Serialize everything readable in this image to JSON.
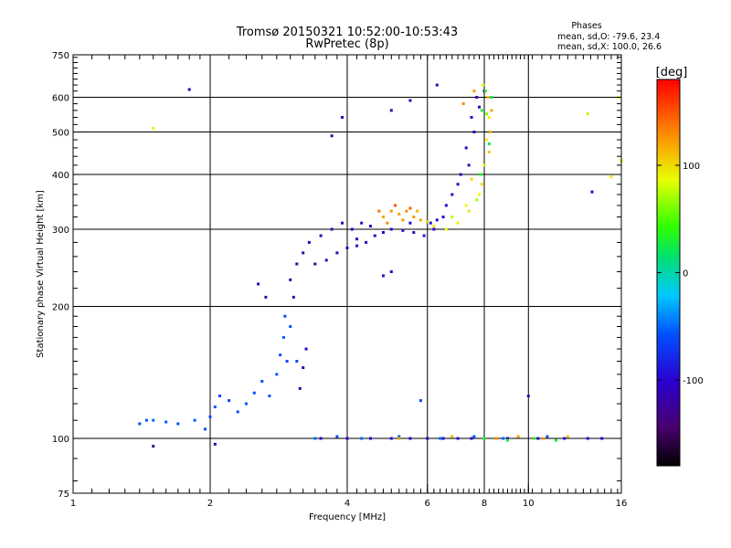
{
  "chart_data": {
    "type": "scatter",
    "title": "Tromsø 20150321 10:52:00-10:53:43",
    "subtitle": "RwPretec (8p)",
    "stats": {
      "heading": "Phases",
      "line1": "mean, sd,O: -79.6, 23.4",
      "line2": "mean, sd,X: 100.0, 26.6"
    },
    "xlabel": "Frequency [MHz]",
    "ylabel": "Stationary phase Virtual Height [km]",
    "x_scale": "log",
    "y_scale": "log",
    "xlim": [
      1,
      16
    ],
    "ylim": [
      75,
      750
    ],
    "x_ticks": [
      1,
      2,
      4,
      6,
      8,
      10,
      16
    ],
    "x_tick_labels": [
      "1",
      "2",
      "4",
      "6",
      "8",
      "10",
      "16"
    ],
    "y_ticks": [
      75,
      100,
      200,
      300,
      400,
      500,
      600,
      750
    ],
    "y_tick_labels": [
      "75",
      "100",
      "200",
      "300",
      "400",
      "500",
      "600",
      "750"
    ],
    "grid": true,
    "colorbar": {
      "label": "[deg]",
      "range": [
        -180,
        180
      ],
      "ticks": [
        100,
        0,
        -100
      ],
      "tick_labels": [
        "100",
        "0",
        "-100"
      ]
    },
    "series": [
      {
        "points": [
          [
            1.4,
            108,
            -60
          ],
          [
            1.45,
            110,
            -55
          ],
          [
            1.5,
            110,
            -50
          ],
          [
            1.6,
            109,
            -55
          ],
          [
            1.7,
            108,
            -60
          ],
          [
            1.85,
            110,
            -55
          ],
          [
            1.95,
            105,
            -60
          ],
          [
            2.0,
            112,
            -60
          ],
          [
            2.05,
            118,
            -55
          ],
          [
            2.1,
            125,
            -60
          ],
          [
            2.2,
            122,
            -65
          ],
          [
            2.3,
            115,
            -60
          ],
          [
            2.4,
            120,
            -55
          ],
          [
            2.5,
            127,
            -60
          ],
          [
            2.6,
            135,
            -60
          ],
          [
            2.7,
            125,
            -55
          ],
          [
            2.8,
            140,
            -55
          ],
          [
            2.85,
            155,
            -60
          ],
          [
            2.9,
            170,
            -55
          ],
          [
            2.92,
            190,
            -60
          ],
          [
            2.95,
            150,
            -60
          ],
          [
            3.0,
            180,
            -60
          ],
          [
            3.05,
            210,
            -110
          ],
          [
            3.1,
            150,
            -60
          ],
          [
            3.15,
            130,
            -110
          ],
          [
            3.2,
            145,
            -115
          ],
          [
            3.0,
            230,
            -120
          ],
          [
            3.1,
            250,
            -115
          ],
          [
            3.2,
            265,
            -120
          ],
          [
            3.4,
            250,
            -115
          ],
          [
            3.6,
            255,
            -110
          ],
          [
            3.8,
            265,
            -110
          ],
          [
            4.0,
            272,
            -105
          ],
          [
            4.2,
            275,
            -110
          ],
          [
            4.4,
            280,
            -105
          ],
          [
            4.6,
            290,
            -110
          ],
          [
            4.8,
            295,
            -105
          ],
          [
            5.0,
            300,
            -100
          ],
          [
            5.3,
            298,
            -95
          ],
          [
            5.6,
            295,
            -95
          ],
          [
            5.9,
            290,
            -90
          ],
          [
            6.2,
            300,
            -100
          ],
          [
            6.5,
            320,
            -105
          ],
          [
            6.8,
            360,
            -100
          ],
          [
            7.1,
            400,
            -105
          ],
          [
            7.3,
            460,
            -110
          ],
          [
            7.5,
            540,
            -105
          ],
          [
            7.7,
            600,
            -110
          ],
          [
            3.3,
            280,
            -115
          ],
          [
            3.5,
            290,
            -120
          ],
          [
            3.7,
            300,
            -115
          ],
          [
            3.9,
            310,
            -110
          ],
          [
            4.1,
            300,
            -110
          ],
          [
            4.3,
            310,
            -105
          ],
          [
            4.5,
            305,
            -100
          ],
          [
            4.2,
            285,
            -115
          ],
          [
            5.5,
            310,
            -95
          ],
          [
            6.1,
            310,
            -90
          ],
          [
            6.3,
            315,
            -95
          ],
          [
            6.6,
            340,
            -100
          ],
          [
            7.0,
            380,
            -105
          ],
          [
            7.4,
            420,
            -110
          ],
          [
            7.6,
            500,
            -110
          ],
          [
            7.8,
            570,
            -105
          ],
          [
            8.0,
            620,
            -110
          ],
          [
            3.5,
            100,
            -100
          ],
          [
            4.0,
            100,
            -105
          ],
          [
            4.5,
            100,
            -100
          ],
          [
            5.0,
            100,
            -95
          ],
          [
            5.5,
            100,
            -100
          ],
          [
            6.0,
            100,
            -105
          ],
          [
            6.5,
            100,
            -100
          ],
          [
            7.0,
            100,
            -95
          ],
          [
            7.5,
            100,
            -100
          ],
          [
            8.0,
            100,
            -105
          ],
          [
            9.0,
            100,
            -100
          ],
          [
            10.5,
            100,
            -105
          ],
          [
            12.0,
            100,
            -100
          ],
          [
            13.5,
            100,
            -95
          ],
          [
            14.5,
            100,
            -100
          ],
          [
            3.4,
            100,
            -50
          ],
          [
            3.8,
            101,
            -55
          ],
          [
            4.3,
            100,
            -50
          ],
          [
            5.2,
            101,
            -55
          ],
          [
            6.4,
            100,
            -50
          ],
          [
            7.6,
            101,
            -55
          ],
          [
            8.8,
            100,
            -50
          ],
          [
            11.0,
            101,
            -55
          ],
          [
            1.8,
            625,
            -110
          ],
          [
            3.7,
            490,
            -110
          ],
          [
            3.9,
            540,
            -105
          ],
          [
            5.0,
            560,
            -110
          ],
          [
            5.5,
            590,
            -105
          ],
          [
            6.3,
            640,
            -115
          ],
          [
            13.8,
            365,
            -110
          ],
          [
            1.5,
            96,
            -130
          ],
          [
            2.05,
            97,
            -120
          ],
          [
            2.55,
            225,
            -115
          ],
          [
            2.65,
            210,
            -120
          ],
          [
            10.0,
            125,
            -115
          ],
          [
            5.8,
            122,
            -60
          ],
          [
            5.0,
            240,
            -100
          ],
          [
            4.8,
            235,
            -110
          ],
          [
            3.25,
            160,
            -105
          ]
        ]
      },
      {
        "points": [
          [
            4.8,
            320,
            120
          ],
          [
            5.0,
            330,
            125
          ],
          [
            5.2,
            325,
            120
          ],
          [
            5.4,
            330,
            130
          ],
          [
            5.6,
            320,
            125
          ],
          [
            5.8,
            315,
            120
          ],
          [
            6.0,
            312,
            100
          ],
          [
            4.9,
            310,
            130
          ],
          [
            5.3,
            315,
            125
          ],
          [
            5.7,
            330,
            115
          ],
          [
            6.2,
            305,
            95
          ],
          [
            6.6,
            300,
            85
          ],
          [
            7.0,
            310,
            90
          ],
          [
            7.4,
            330,
            95
          ],
          [
            7.8,
            360,
            85
          ],
          [
            8.0,
            420,
            80
          ],
          [
            8.1,
            480,
            85
          ],
          [
            8.2,
            540,
            90
          ],
          [
            8.15,
            600,
            110
          ],
          [
            7.9,
            380,
            100
          ],
          [
            8.3,
            560,
            120
          ],
          [
            8.25,
            500,
            115
          ],
          [
            7.2,
            580,
            130
          ],
          [
            7.6,
            620,
            125
          ],
          [
            7.95,
            640,
            90
          ],
          [
            8.1,
            550,
            60
          ],
          [
            7.7,
            350,
            70
          ],
          [
            7.3,
            340,
            85
          ],
          [
            6.8,
            320,
            75
          ],
          [
            7.5,
            390,
            100
          ],
          [
            8.2,
            450,
            105
          ],
          [
            5.2,
            100,
            120
          ],
          [
            6.8,
            101,
            115
          ],
          [
            8.5,
            100,
            130
          ],
          [
            9.5,
            101,
            120
          ],
          [
            10.8,
            100,
            125
          ],
          [
            12.2,
            101,
            110
          ],
          [
            1.5,
            510,
            80
          ],
          [
            13.5,
            550,
            75
          ],
          [
            15.2,
            395,
            95
          ],
          [
            15.8,
            600,
            90
          ],
          [
            16.0,
            430,
            85
          ],
          [
            4.7,
            330,
            140
          ],
          [
            5.1,
            340,
            150
          ],
          [
            5.5,
            335,
            145
          ]
        ]
      },
      {
        "points": [
          [
            8.05,
            620,
            40
          ],
          [
            7.9,
            560,
            30
          ],
          [
            8.2,
            470,
            20
          ],
          [
            7.85,
            400,
            35
          ],
          [
            8.3,
            600,
            25
          ],
          [
            8.0,
            100,
            35
          ],
          [
            9.0,
            99,
            30
          ],
          [
            10.3,
            100,
            40
          ],
          [
            11.5,
            99,
            25
          ]
        ]
      }
    ]
  }
}
